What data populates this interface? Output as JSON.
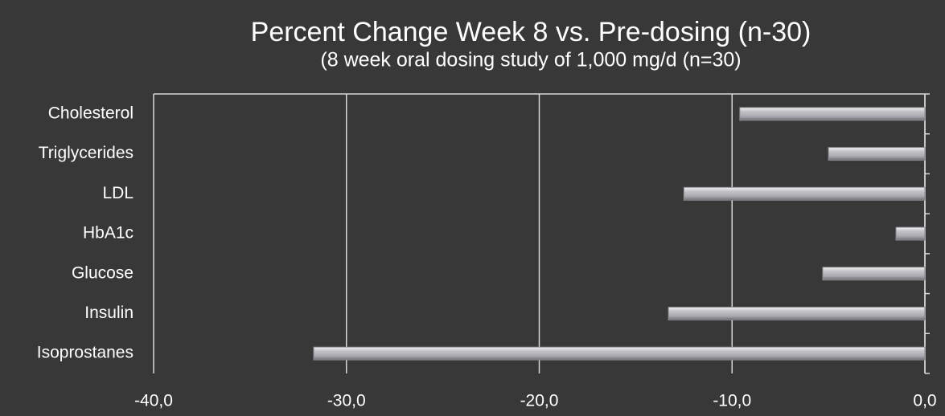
{
  "chart_data": {
    "type": "bar",
    "orientation": "horizontal",
    "title": "Percent Change Week 8 vs. Pre-dosing (n-30)",
    "subtitle": "(8 week oral dosing study of 1,000 mg/d (n=30)",
    "categories": [
      "Cholesterol",
      "Triglycerides",
      "LDL",
      "HbA1c",
      "Glucose",
      "Insulin",
      "Isoprostanes"
    ],
    "values": [
      -9.6,
      -5.0,
      -12.5,
      -1.5,
      -5.3,
      -13.3,
      -31.7
    ],
    "color": "#b8b8bc",
    "xlim": [
      -40,
      0
    ],
    "xticks": [
      {
        "value": -40,
        "label": "-40,0"
      },
      {
        "value": -30,
        "label": "-30,0"
      },
      {
        "value": -20,
        "label": "-20,0"
      },
      {
        "value": -10,
        "label": "-10,0"
      },
      {
        "value": 0,
        "label": "0,0"
      }
    ],
    "grid": true
  }
}
